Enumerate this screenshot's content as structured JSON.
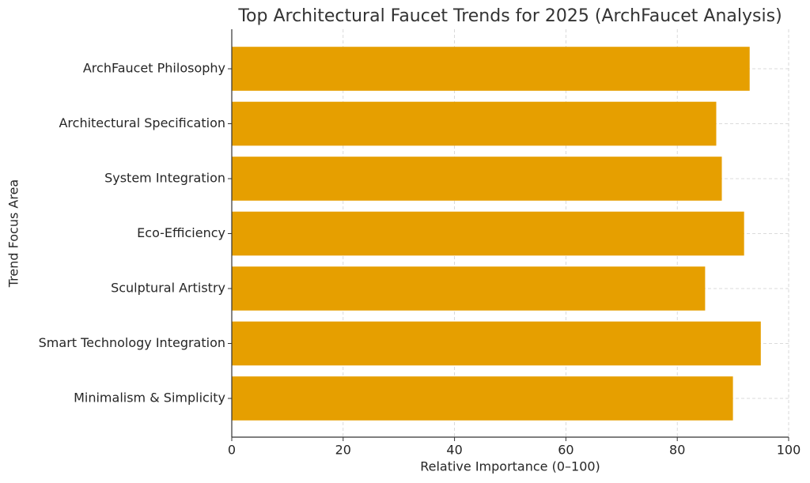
{
  "chart_data": {
    "type": "bar",
    "orientation": "horizontal",
    "title": "Top Architectural Faucet Trends for 2025 (ArchFaucet Analysis)",
    "x_label": "Relative Importance (0–100)",
    "y_label": "Trend Focus Area",
    "categories": [
      "ArchFaucet Philosophy",
      "Architectural Specification",
      "System Integration",
      "Eco-Efficiency",
      "Sculptural Artistry",
      "Smart Technology Integration",
      "Minimalism & Simplicity"
    ],
    "values": [
      93,
      87,
      88,
      92,
      85,
      95,
      90
    ],
    "color": "#e69f00",
    "xlim": [
      0,
      100
    ],
    "xticks": [
      0,
      20,
      40,
      60,
      80,
      100
    ],
    "grid": true
  }
}
